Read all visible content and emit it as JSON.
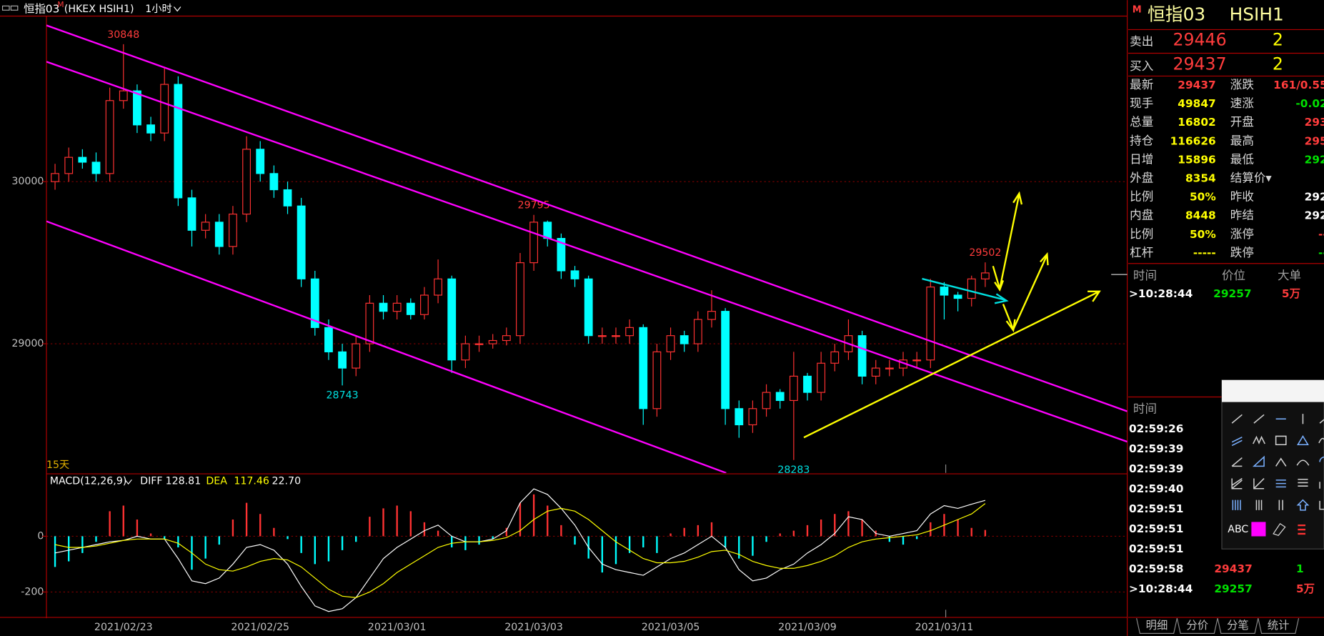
{
  "header": {
    "title": "恒指03",
    "badge": "M",
    "exchange": "(HKEX HSIH1)",
    "period": "1小时"
  },
  "chart_data": [
    {
      "type": "candlestick",
      "categories": [
        null,
        null,
        null,
        null,
        null,
        "2021/02/23",
        null,
        null,
        null,
        null,
        null,
        null,
        null,
        null,
        null,
        "2021/02/25",
        null,
        null,
        null,
        null,
        null,
        null,
        null,
        null,
        null,
        "2021/03/01",
        null,
        null,
        null,
        null,
        null,
        null,
        null,
        null,
        null,
        "2021/03/03",
        null,
        null,
        null,
        null,
        null,
        null,
        null,
        null,
        null,
        "2021/03/05",
        null,
        null,
        null,
        null,
        null,
        null,
        null,
        null,
        null,
        "2021/03/09",
        null,
        null,
        null,
        null,
        null,
        null,
        null,
        null,
        null,
        "2021/03/11",
        null,
        null,
        null
      ],
      "open": [
        30000,
        30050,
        30150,
        30120,
        30050,
        30500,
        30560,
        30350,
        30300,
        30600,
        29900,
        29700,
        29750,
        29600,
        29800,
        30200,
        30050,
        29950,
        29850,
        29400,
        29100,
        28950,
        28850,
        29000,
        29250,
        29200,
        29250,
        29180,
        29300,
        29400,
        28900,
        29000,
        29000,
        29020,
        29050,
        29500,
        29750,
        29650,
        29450,
        29400,
        29050,
        29050,
        29050,
        29100,
        28600,
        28950,
        29050,
        29000,
        29150,
        29200,
        28600,
        28500,
        28600,
        28700,
        28650,
        28800,
        28700,
        28880,
        28950,
        29050,
        28800,
        28850,
        28850,
        28900,
        28900,
        29350,
        29300,
        29280,
        29400
      ],
      "high": [
        30110,
        30210,
        30200,
        30180,
        30580,
        30848,
        30600,
        30400,
        30700,
        30650,
        29950,
        29800,
        29800,
        29850,
        30280,
        30250,
        30100,
        30000,
        29900,
        29450,
        29150,
        29000,
        29050,
        29300,
        29300,
        29300,
        29280,
        29350,
        29520,
        29420,
        29050,
        29050,
        29060,
        29100,
        29560,
        29795,
        29760,
        29680,
        29480,
        29420,
        29100,
        29100,
        29150,
        29120,
        29000,
        29100,
        29080,
        29200,
        29330,
        29220,
        28650,
        28650,
        28750,
        28720,
        28950,
        28820,
        28950,
        29000,
        29150,
        29080,
        28900,
        28900,
        28950,
        28950,
        29400,
        29380,
        29320,
        29420,
        29502
      ],
      "low": [
        29950,
        30000,
        30080,
        30000,
        30000,
        30450,
        30300,
        30250,
        30250,
        29850,
        29600,
        29650,
        29550,
        29550,
        29750,
        30000,
        29900,
        29800,
        29350,
        29050,
        28900,
        28743,
        28800,
        28950,
        29150,
        29150,
        29150,
        29150,
        29250,
        28820,
        28850,
        28950,
        28970,
        28990,
        29000,
        29450,
        29600,
        29400,
        29350,
        29000,
        29000,
        29000,
        29000,
        28500,
        28550,
        28900,
        28950,
        28950,
        29100,
        28500,
        28420,
        28450,
        28550,
        28600,
        28283,
        28650,
        28650,
        28830,
        28900,
        28750,
        28750,
        28800,
        28800,
        28850,
        28850,
        29150,
        29200,
        29230,
        29350
      ],
      "close": [
        30050,
        30150,
        30120,
        30050,
        30500,
        30560,
        30350,
        30300,
        30600,
        29900,
        29700,
        29750,
        29600,
        29800,
        30200,
        30050,
        29950,
        29850,
        29400,
        29100,
        28950,
        28850,
        29000,
        29250,
        29200,
        29250,
        29180,
        29300,
        29400,
        28900,
        29000,
        29000,
        29020,
        29050,
        29500,
        29750,
        29650,
        29450,
        29400,
        29050,
        29050,
        29050,
        29100,
        28600,
        28950,
        29050,
        29000,
        29150,
        29200,
        28600,
        28500,
        28600,
        28700,
        28650,
        28800,
        28700,
        28880,
        28950,
        29050,
        28800,
        28850,
        28850,
        28900,
        28900,
        29350,
        29300,
        29280,
        29400,
        29437
      ],
      "up_color": "#ff3232",
      "down_color": "#00ffff",
      "ylim": [
        28203,
        31016
      ],
      "yticks": [
        29000,
        30000
      ],
      "grid": true,
      "period_label": "15天"
    },
    {
      "type": "macd",
      "title": "MACD(12,26,9)",
      "series": [
        {
          "name": "DIFF",
          "color": "#ffffff",
          "values": [
            -60,
            -50,
            -40,
            -30,
            -20,
            -15,
            0,
            -10,
            -10,
            -80,
            -160,
            -170,
            -150,
            -100,
            -40,
            -30,
            -50,
            -100,
            -180,
            -250,
            -270,
            -260,
            -220,
            -150,
            -80,
            -40,
            -10,
            20,
            40,
            0,
            -20,
            -20,
            -10,
            20,
            120,
            170,
            150,
            100,
            40,
            -40,
            -100,
            -120,
            -130,
            -140,
            -110,
            -80,
            -60,
            -30,
            0,
            -40,
            -120,
            -160,
            -150,
            -120,
            -100,
            -60,
            -30,
            10,
            70,
            60,
            10,
            0,
            10,
            20,
            80,
            110,
            100,
            115,
            128.81
          ]
        },
        {
          "name": "DEA",
          "color": "#ffff00",
          "values": [
            -30,
            -40,
            -40,
            -35,
            -25,
            -15,
            -10,
            -10,
            -10,
            -25,
            -60,
            -100,
            -120,
            -125,
            -110,
            -90,
            -80,
            -85,
            -110,
            -150,
            -190,
            -215,
            -220,
            -200,
            -170,
            -130,
            -100,
            -70,
            -40,
            -25,
            -20,
            -20,
            -15,
            -5,
            20,
            60,
            90,
            100,
            90,
            60,
            20,
            -20,
            -50,
            -80,
            -95,
            -95,
            -90,
            -75,
            -55,
            -50,
            -65,
            -90,
            -105,
            -115,
            -115,
            -105,
            -90,
            -70,
            -40,
            -20,
            -10,
            -5,
            0,
            5,
            20,
            40,
            60,
            80,
            117.46
          ]
        }
      ],
      "histogram": {
        "up_color": "#ff3232",
        "down_color": "#00ffff",
        "current_label": "22.70",
        "values": [
          -110,
          -90,
          -60,
          -20,
          90,
          110,
          60,
          10,
          -10,
          -40,
          -120,
          -80,
          -30,
          60,
          120,
          80,
          30,
          -10,
          -60,
          -100,
          -90,
          -50,
          -20,
          70,
          100,
          110,
          90,
          50,
          20,
          -40,
          -50,
          -30,
          -10,
          30,
          120,
          150,
          110,
          40,
          -30,
          -80,
          -130,
          -100,
          -60,
          -40,
          -60,
          10,
          30,
          40,
          50,
          -40,
          -80,
          -70,
          -20,
          10,
          20,
          40,
          60,
          80,
          90,
          60,
          20,
          -20,
          -30,
          -10,
          50,
          80,
          60,
          30,
          22.7
        ]
      },
      "ylim": [
        -288,
        221
      ],
      "yticks": [
        -200,
        0
      ],
      "grid": true
    }
  ],
  "quote": {
    "badge": "M",
    "name": "恒指03",
    "code": "HSIH1",
    "ask": {
      "label": "卖出",
      "price": "29446",
      "size": "2"
    },
    "bid": {
      "label": "买入",
      "price": "29437",
      "size": "2"
    },
    "rows": [
      [
        "最新",
        "29437",
        "涨跌",
        "161/0.55"
      ],
      [
        "现手",
        "49847",
        "速涨",
        "-0.02"
      ],
      [
        "总量",
        "16802",
        "开盘",
        "293"
      ],
      [
        "持仓",
        "116626",
        "最高",
        "295"
      ],
      [
        "日增",
        "15896",
        "最低",
        "292"
      ],
      [
        "外盘",
        "8354",
        "结算价▾"
      ],
      [
        "比例",
        "50%",
        "昨收",
        "292"
      ],
      [
        "内盘",
        "8448",
        "昨结",
        "292"
      ],
      [
        "比例",
        "50%",
        "涨停",
        "--"
      ],
      [
        "杠杆",
        "-----",
        "跌停",
        "--"
      ]
    ]
  },
  "big_trades": {
    "headers": [
      "时间",
      "价位",
      "大单"
    ],
    "rows": [
      [
        ">10:28:44",
        "29257",
        "5万"
      ]
    ]
  },
  "trades": {
    "header": "时间",
    "rows": [
      [
        "02:59:26"
      ],
      [
        "02:59:39"
      ],
      [
        "02:59:39"
      ],
      [
        "02:59:40"
      ],
      [
        "02:59:51"
      ],
      [
        "02:59:51"
      ],
      [
        "02:59:51"
      ],
      [
        "02:59:58",
        "29437",
        "1"
      ],
      [
        ">10:28:44",
        "29257",
        "5万"
      ]
    ]
  },
  "toolbox": {
    "text": "ABC"
  },
  "tabs": [
    "明细",
    "分价",
    "分笔",
    "统计"
  ]
}
